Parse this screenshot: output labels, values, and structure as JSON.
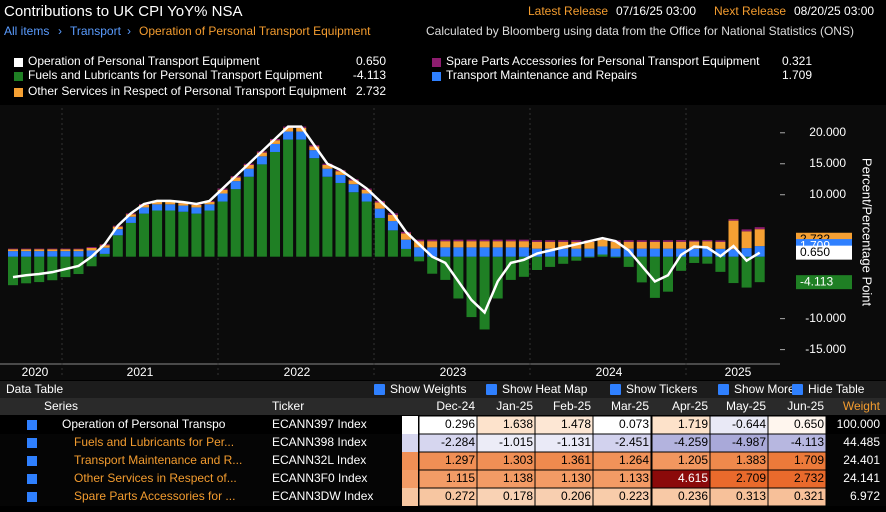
{
  "header": {
    "title": "Contributions to UK CPI YoY% NSA",
    "latest_label": "Latest Release",
    "latest": "07/16/25 03:00",
    "next_label": "Next Release",
    "next": "08/20/25 03:00",
    "breadcrumb": [
      "All items",
      "Transport",
      "Operation of Personal Transport Equipment"
    ],
    "source": "Calculated by Bloomberg using data from the Office for National Statistics (ONS)"
  },
  "chart": {
    "type": "stacked-bar-line",
    "y_label": "Percent/Percentage Point",
    "xlabels": [
      "2020",
      "2021",
      "2022",
      "2023",
      "2024",
      "2025"
    ],
    "ylim": [
      -17,
      24
    ],
    "yticks": [
      {
        "value": 20,
        "label": "20.000"
      },
      {
        "value": 15,
        "label": "15.000"
      },
      {
        "value": 10,
        "label": "10.000"
      },
      {
        "value": -10,
        "label": "-10.000"
      },
      {
        "value": -15,
        "label": "-15.000"
      }
    ],
    "series": [
      {
        "name": "Operation of Personal Transport Equipment",
        "color": "#ffffff",
        "kind": "line",
        "values": [
          -3.3,
          -3,
          -2.8,
          -2.5,
          -2,
          -1.5,
          0,
          2,
          5,
          7,
          8.5,
          9,
          9,
          8.8,
          8.5,
          9,
          11,
          13,
          15,
          17,
          19,
          21,
          21,
          18,
          15,
          14,
          12.5,
          11,
          9,
          7,
          4,
          2,
          0,
          -1,
          -4,
          -7,
          -9,
          -4,
          -1,
          -0.5,
          0.5,
          1,
          1.5,
          2,
          2.5,
          3,
          2.5,
          1,
          -1.5,
          -4,
          -3,
          0.296,
          1.638,
          1.478,
          0.073,
          1.719,
          -0.644,
          0.65
        ]
      },
      {
        "name": "Fuels and Lubricants for Personal Transport Equipment",
        "color": "#1f7f24",
        "kind": "bar",
        "values": [
          -4.6,
          -4.3,
          -4.1,
          -3.8,
          -3.3,
          -2.8,
          -1.55,
          0.45,
          3.45,
          5.45,
          6.95,
          7.45,
          7.45,
          7.25,
          6.95,
          7.45,
          8.9,
          10.9,
          12.9,
          14.9,
          16.9,
          18.9,
          18.9,
          15.9,
          12.9,
          11.9,
          10.4,
          8.9,
          6.25,
          4.25,
          1.25,
          -0.75,
          -2.75,
          -3.75,
          -6.75,
          -9.75,
          -11.75,
          -6.75,
          -3.75,
          -3.25,
          -2.15,
          -1.65,
          -1.15,
          -0.65,
          -0.15,
          0.35,
          -0.15,
          -1.65,
          -4.15,
          -6.65,
          -5.65,
          -2.284,
          -1.015,
          -1.131,
          -2.451,
          -4.259,
          -4.987,
          -4.113
        ]
      },
      {
        "name": "Transport Maintenance and Repairs",
        "color": "#2f80ff",
        "kind": "bar",
        "values": [
          0.9,
          0.9,
          0.9,
          0.9,
          0.9,
          0.9,
          1,
          1,
          1,
          1,
          1,
          1,
          1,
          1,
          1,
          1,
          1.3,
          1.3,
          1.3,
          1.3,
          1.3,
          1.3,
          1.3,
          1.3,
          1.3,
          1.3,
          1.3,
          1.3,
          1.5,
          1.5,
          1.5,
          1.5,
          1.5,
          1.5,
          1.5,
          1.5,
          1.5,
          1.5,
          1.5,
          1.5,
          1.3,
          1.3,
          1.3,
          1.3,
          1.3,
          1.3,
          1.3,
          1.3,
          1.3,
          1.3,
          1.3,
          1.297,
          1.303,
          1.361,
          1.264,
          1.205,
          1.383,
          1.709
        ]
      },
      {
        "name": "Other Services in Respect of Personal Transport Equipment",
        "color": "#f5a033",
        "kind": "bar",
        "values": [
          0.3,
          0.3,
          0.3,
          0.3,
          0.3,
          0.3,
          0.4,
          0.4,
          0.4,
          0.4,
          0.4,
          0.4,
          0.4,
          0.4,
          0.4,
          0.4,
          0.6,
          0.6,
          0.6,
          0.6,
          0.6,
          0.6,
          0.6,
          0.6,
          0.6,
          0.6,
          0.6,
          0.6,
          1,
          1,
          1,
          1,
          1,
          1,
          1,
          1,
          1,
          1,
          1,
          1,
          1.1,
          1.1,
          1.1,
          1.1,
          1.1,
          1.1,
          1.1,
          1.1,
          1.1,
          1.1,
          1.1,
          1.115,
          1.138,
          1.13,
          1.133,
          4.615,
          2.709,
          2.732
        ]
      },
      {
        "name": "Spare Parts Accessories for Personal Transport Equipment",
        "color": "#8e1d6f",
        "kind": "bar",
        "values": [
          0.1,
          0.1,
          0.1,
          0.1,
          0.1,
          0.1,
          0.15,
          0.15,
          0.15,
          0.15,
          0.15,
          0.15,
          0.15,
          0.15,
          0.15,
          0.15,
          0.2,
          0.2,
          0.2,
          0.2,
          0.2,
          0.2,
          0.2,
          0.2,
          0.2,
          0.2,
          0.2,
          0.2,
          0.25,
          0.25,
          0.25,
          0.25,
          0.25,
          0.25,
          0.25,
          0.25,
          0.25,
          0.25,
          0.25,
          0.25,
          0.25,
          0.25,
          0.25,
          0.25,
          0.25,
          0.25,
          0.25,
          0.25,
          0.25,
          0.25,
          0.25,
          0.272,
          0.178,
          0.206,
          0.223,
          0.236,
          0.313,
          0.321
        ]
      }
    ]
  },
  "toolbar": {
    "title": "Data Table",
    "buttons": [
      "Show Weights",
      "Show Heat Map",
      "Show Tickers",
      "Show More",
      "Hide Table"
    ]
  },
  "table": {
    "columns": [
      "Series",
      "Ticker",
      "Dec-24",
      "Jan-25",
      "Feb-25",
      "Mar-25",
      "Apr-25",
      "May-25",
      "Jun-25",
      "Weight"
    ],
    "rows": [
      {
        "name": "Operation of Personal Transpo",
        "ticker": "ECANN397 Index",
        "values": [
          "0.296",
          "1.638",
          "1.478",
          "0.073",
          "1.719",
          "-0.644",
          "0.650"
        ],
        "weight": "100.000"
      },
      {
        "name": "Fuels and Lubricants for Per...",
        "ticker": "ECANN398 Index",
        "values": [
          "-2.284",
          "-1.015",
          "-1.131",
          "-2.451",
          "-4.259",
          "-4.987",
          "-4.113"
        ],
        "weight": "44.485"
      },
      {
        "name": "Transport Maintenance and R...",
        "ticker": "ECANN32L Index",
        "values": [
          "1.297",
          "1.303",
          "1.361",
          "1.264",
          "1.205",
          "1.383",
          "1.709"
        ],
        "weight": "24.401"
      },
      {
        "name": "Other Services in Respect of...",
        "ticker": "ECANN3F0 Index",
        "values": [
          "1.115",
          "1.138",
          "1.130",
          "1.133",
          "4.615",
          "2.709",
          "2.732"
        ],
        "weight": "24.141"
      },
      {
        "name": "Spare Parts Accessories for ...",
        "ticker": "ECANN3DW Index",
        "values": [
          "0.272",
          "0.178",
          "0.206",
          "0.223",
          "0.236",
          "0.313",
          "0.321"
        ],
        "weight": "6.972"
      }
    ]
  }
}
